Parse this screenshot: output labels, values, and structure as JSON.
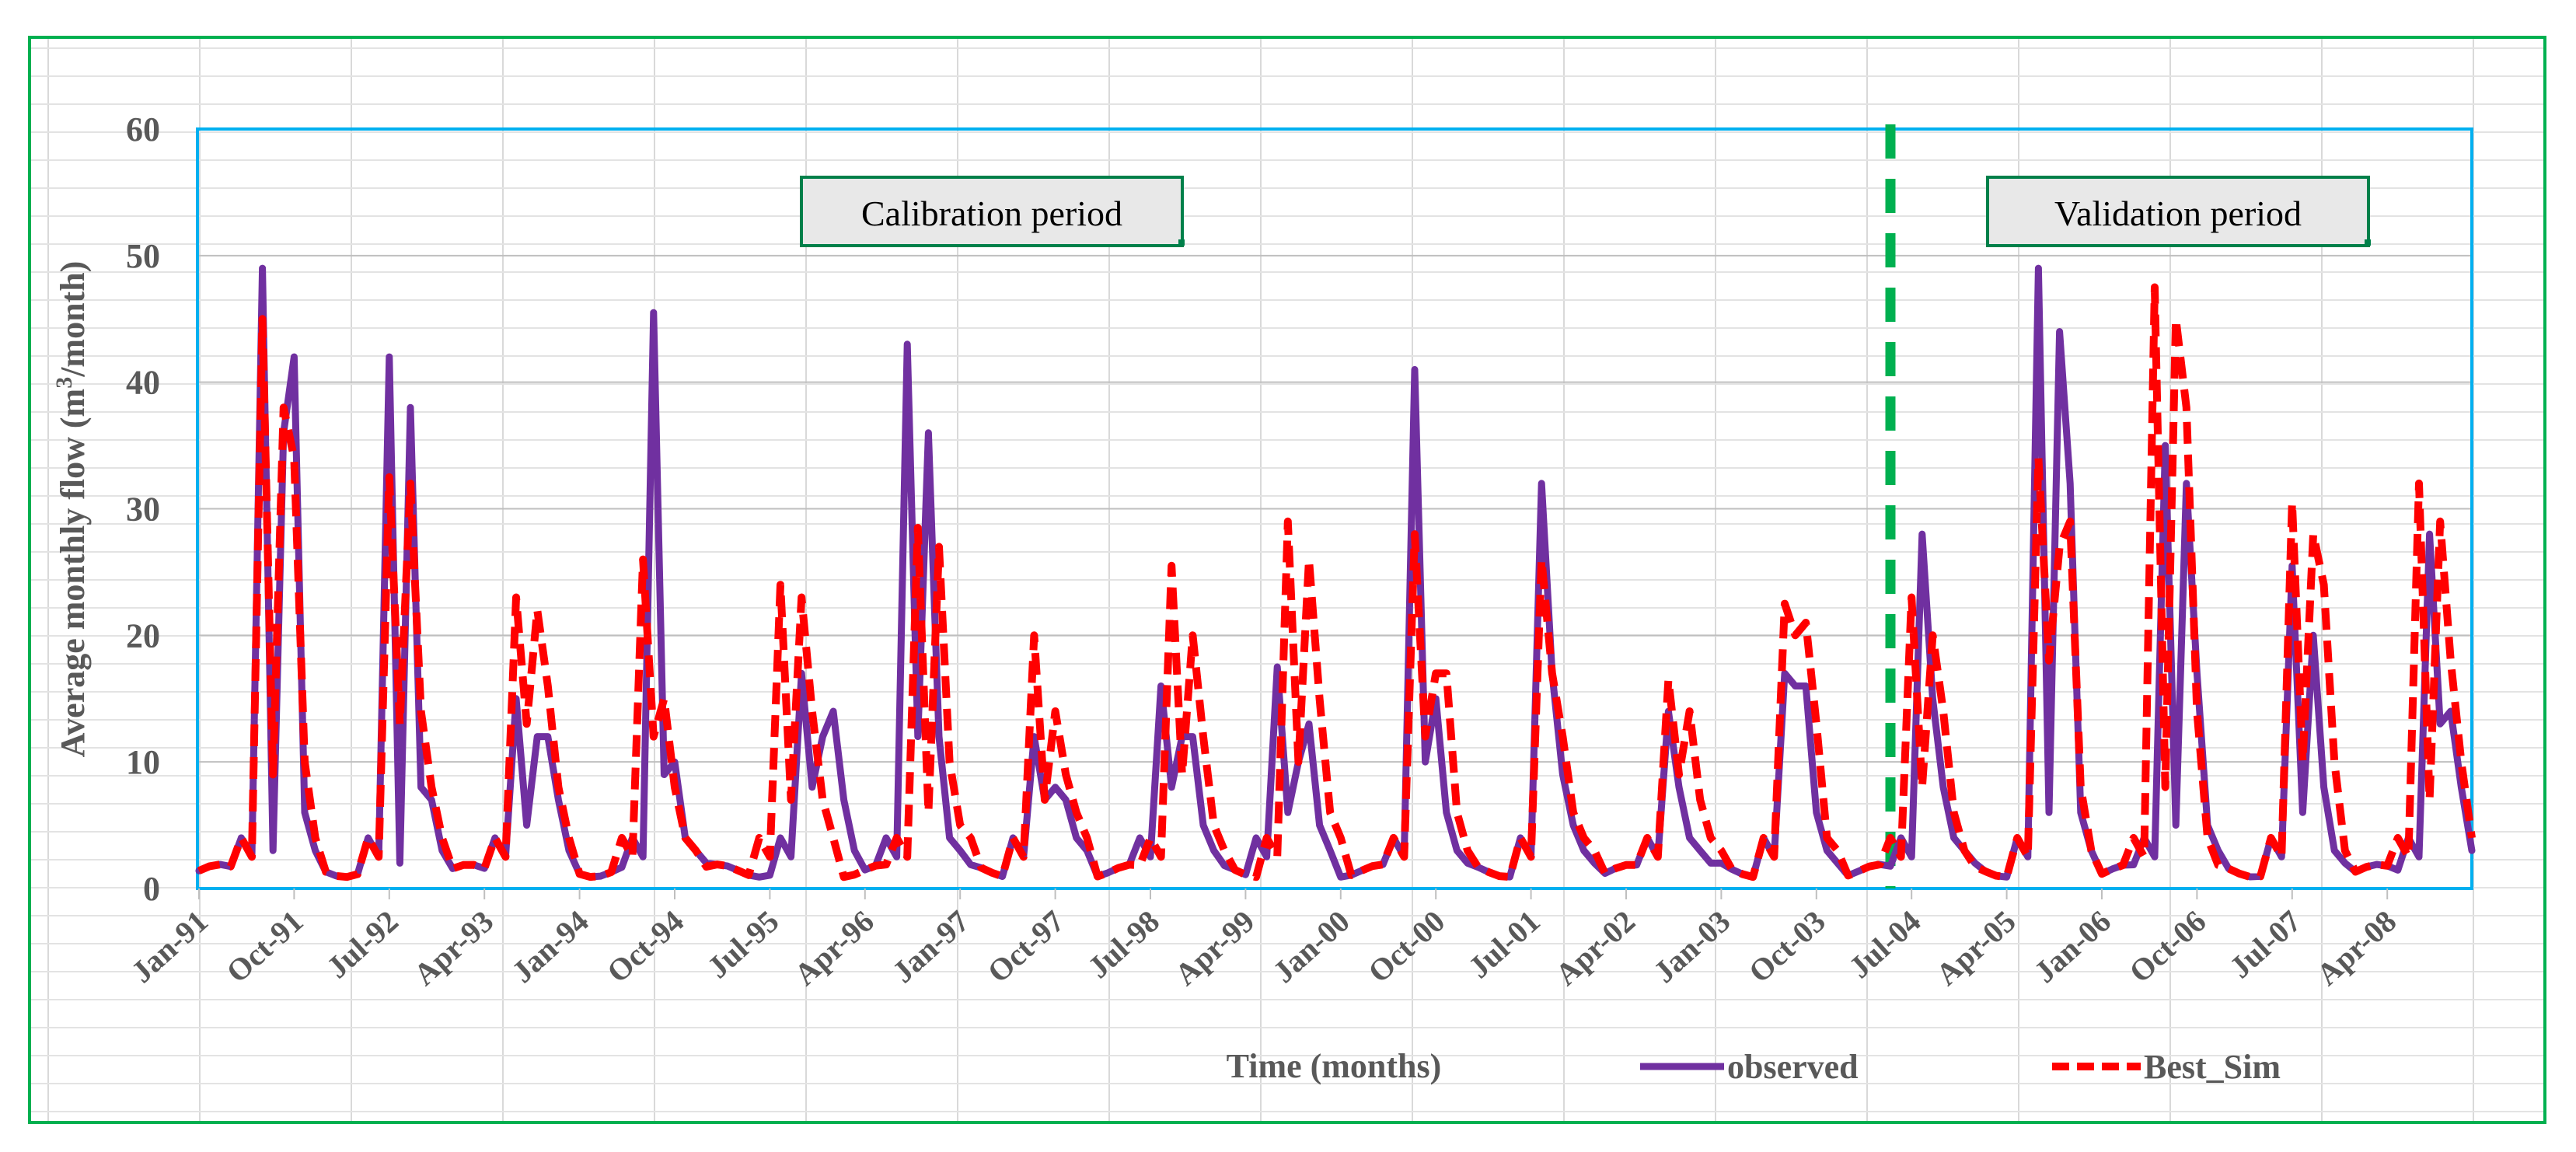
{
  "chart_data": {
    "type": "line",
    "ylabel": "Average monthly flow (m³/month)",
    "xlabel": "Time (months)",
    "ylim": [
      0,
      60
    ],
    "yticks": [
      0,
      10,
      20,
      30,
      40,
      50,
      60
    ],
    "x_start": "Jan-91",
    "x_end": "Dec-08",
    "n_months": 216,
    "xtick_labels": [
      "Jan-91",
      "Oct-91",
      "Jul-92",
      "Apr-93",
      "Jan-94",
      "Oct-94",
      "Jul-95",
      "Apr-96",
      "Jan-97",
      "Oct-97",
      "Jul-98",
      "Apr-99",
      "Jan-00",
      "Oct-00",
      "Jul-01",
      "Apr-02",
      "Jan-03",
      "Oct-03",
      "Jul-04",
      "Apr-05",
      "Jan-06",
      "Oct-06",
      "Jul-07",
      "Apr-08"
    ],
    "xtick_interval_months": 9,
    "grid": true,
    "legend_position": "bottom-right",
    "annotations": {
      "calibration": "Calibration period",
      "validation": "Validation period",
      "split_month_index": 160
    },
    "series": [
      {
        "name": "observed",
        "color": "#7030A0",
        "style": "solid",
        "peaks": [
          {
            "m": 6,
            "v": 49,
            "w": [
              3,
              36,
              42,
              6,
              3
            ]
          },
          {
            "m": 18,
            "v": 42,
            "w": [
              2,
              38,
              8,
              7,
              3
            ]
          },
          {
            "m": 30,
            "v": 15,
            "w": [
              5,
              12,
              12,
              7,
              3
            ]
          },
          {
            "m": 43,
            "v": 45.5,
            "w": [
              9,
              10,
              4,
              3,
              2
            ]
          },
          {
            "m": 57,
            "v": 17,
            "w": [
              8,
              12,
              14,
              7,
              3
            ]
          },
          {
            "m": 67,
            "v": 43,
            "w": [
              12,
              36,
              12,
              4,
              3
            ]
          },
          {
            "m": 79,
            "v": 12,
            "w": [
              7,
              8,
              7,
              4,
              3
            ]
          },
          {
            "m": 91,
            "v": 16,
            "w": [
              8,
              12,
              12,
              5,
              3
            ]
          },
          {
            "m": 102,
            "v": 17.5,
            "w": [
              6,
              10,
              13,
              5,
              3
            ]
          },
          {
            "m": 115,
            "v": 41,
            "w": [
              10,
              15,
              6,
              3,
              2
            ]
          },
          {
            "m": 127,
            "v": 32,
            "w": [
              17,
              9,
              5,
              3,
              2
            ]
          },
          {
            "m": 139,
            "v": 14,
            "w": [
              8,
              4,
              3,
              2,
              2
            ]
          },
          {
            "m": 150,
            "v": 17,
            "w": [
              16,
              16,
              6,
              3,
              2
            ]
          },
          {
            "m": 163,
            "v": 28,
            "w": [
              15,
              8,
              4,
              3,
              2
            ]
          },
          {
            "m": 174,
            "v": 49,
            "w": [
              6,
              44,
              32,
              6,
              3
            ]
          },
          {
            "m": 186,
            "v": 35,
            "w": [
              5,
              32,
              17,
              5,
              3
            ]
          },
          {
            "m": 198,
            "v": 25.5,
            "w": [
              6,
              20,
              8,
              3,
              2
            ]
          },
          {
            "m": 211,
            "v": 28,
            "w": [
              13,
              14,
              8,
              3,
              2
            ]
          }
        ]
      },
      {
        "name": "Best_Sim",
        "color": "#FF0000",
        "style": "dashed",
        "peaks": [
          {
            "m": 6,
            "v": 45,
            "w": [
              9,
              38,
              34,
              10,
              4
            ]
          },
          {
            "m": 18,
            "v": 32.5,
            "w": [
              13,
              32,
              14,
              8,
              4
            ]
          },
          {
            "m": 30,
            "v": 23,
            "w": [
              13,
              22,
              16,
              8,
              4
            ]
          },
          {
            "m": 42,
            "v": 26,
            "w": [
              12,
              15,
              8,
              4,
              3
            ]
          },
          {
            "m": 55,
            "v": 24,
            "w": [
              7,
              23,
              14,
              7,
              4
            ]
          },
          {
            "m": 68,
            "v": 28.5,
            "w": [
              6,
              27,
              10,
              5,
              4
            ]
          },
          {
            "m": 79,
            "v": 20,
            "w": [
              7,
              14,
              9,
              6,
              4
            ]
          },
          {
            "m": 92,
            "v": 25.5,
            "w": [
              9,
              20,
              12,
              5,
              3
            ]
          },
          {
            "m": 103,
            "v": 29,
            "w": [
              10,
              26,
              15,
              6,
              4
            ]
          },
          {
            "m": 115,
            "v": 28,
            "w": [
              12,
              17,
              17,
              6,
              3
            ]
          },
          {
            "m": 127,
            "v": 26,
            "w": [
              17,
              12,
              6,
              4,
              3
            ]
          },
          {
            "m": 139,
            "v": 16.5,
            "w": [
              9,
              14,
              7,
              4,
              3
            ]
          },
          {
            "m": 150,
            "v": 22.5,
            "w": [
              20,
              21,
              13,
              4,
              3
            ]
          },
          {
            "m": 162,
            "v": 23,
            "w": [
              8,
              20,
              14,
              6,
              3
            ]
          },
          {
            "m": 174,
            "v": 34,
            "w": [
              18,
              27,
              29,
              8,
              3
            ]
          },
          {
            "m": 185,
            "v": 47.5,
            "w": [
              8,
              45,
              38,
              14,
              4
            ]
          },
          {
            "m": 198,
            "v": 30.5,
            "w": [
              10,
              28,
              24,
              10,
              3
            ]
          },
          {
            "m": 210,
            "v": 32,
            "w": [
              7,
              29,
              18,
              10,
              4
            ]
          }
        ]
      }
    ]
  }
}
